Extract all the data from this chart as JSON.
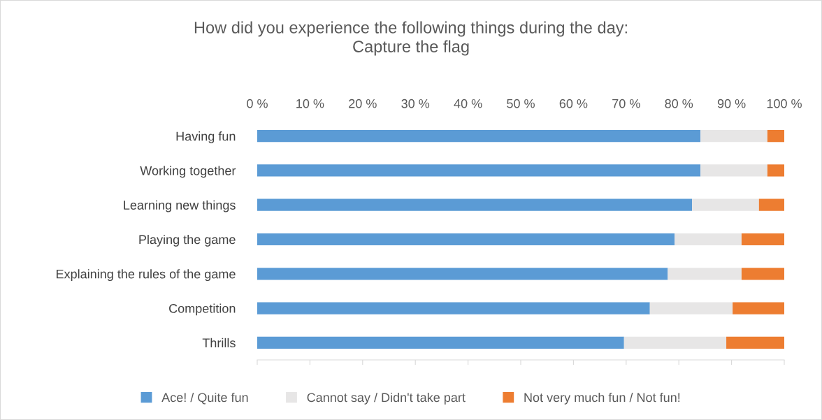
{
  "chart_data": {
    "type": "bar",
    "orientation": "horizontal",
    "stacked": true,
    "title": "How did you experience the following things during the day:\nCapture the flag",
    "categories": [
      "Having fun",
      "Working together",
      "Learning new things",
      "Playing the game",
      "Explaining the rules of the game",
      "Competition",
      "Thrills"
    ],
    "series": [
      {
        "name": "Ace! / Quite fun",
        "color": "#5b9bd5",
        "values": [
          84.1,
          84.1,
          82.5,
          79.2,
          77.9,
          74.5,
          69.6
        ]
      },
      {
        "name": "Cannot say / Didn't take part",
        "color": "#e7e6e6",
        "values": [
          12.7,
          12.7,
          12.7,
          12.7,
          14.0,
          15.7,
          19.4
        ]
      },
      {
        "name": "Not very much fun / Not fun!",
        "color": "#ed7d31",
        "values": [
          3.2,
          3.2,
          4.8,
          8.1,
          8.1,
          9.8,
          11.0
        ]
      }
    ],
    "xlim": [
      0,
      100
    ],
    "xticks": [
      {
        "value": 0,
        "label": "0 %"
      },
      {
        "value": 10,
        "label": "10 %"
      },
      {
        "value": 20,
        "label": "20 %"
      },
      {
        "value": 30,
        "label": "30 %"
      },
      {
        "value": 40,
        "label": "40 %"
      },
      {
        "value": 50,
        "label": "50 %"
      },
      {
        "value": 60,
        "label": "60 %"
      },
      {
        "value": 70,
        "label": "70 %"
      },
      {
        "value": 80,
        "label": "80 %"
      },
      {
        "value": 90,
        "label": "90 %"
      },
      {
        "value": 100,
        "label": "100 %"
      }
    ],
    "grid": false,
    "legend": "bottom"
  }
}
